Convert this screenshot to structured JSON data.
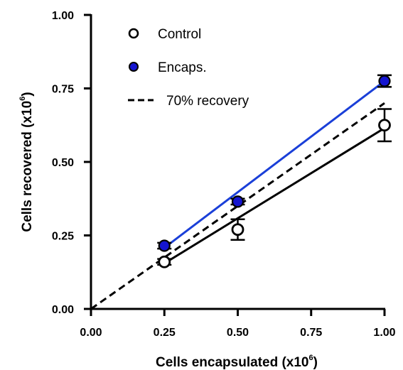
{
  "chart_data": {
    "type": "scatter",
    "xlabel": {
      "main": "Cells encapsulated (x10",
      "sup": "6",
      "close": ")"
    },
    "ylabel": {
      "main": "Cells recovered (x10",
      "sup": "6",
      "close": ")"
    },
    "xlim": [
      0,
      1
    ],
    "ylim": [
      0,
      1
    ],
    "x_ticks": [
      0,
      0.25,
      0.5,
      0.75,
      1
    ],
    "x_tick_labels": [
      "0.00",
      "0.25",
      "0.50",
      "0.75",
      "1.00"
    ],
    "y_ticks": [
      0,
      0.25,
      0.5,
      0.75,
      1
    ],
    "y_tick_labels": [
      "0.00",
      "0.25",
      "0.50",
      "0.75",
      "1.00"
    ],
    "grid": false,
    "legend_position": "top-left",
    "series": [
      {
        "name": "Control",
        "marker": "open-circle",
        "color": "#000000",
        "points": [
          {
            "x": 0.25,
            "y": 0.16,
            "err": 0.01
          },
          {
            "x": 0.5,
            "y": 0.27,
            "err": 0.035
          },
          {
            "x": 1.0,
            "y": 0.625,
            "err": 0.055
          }
        ],
        "fit": {
          "x": [
            0.25,
            1.0
          ],
          "y": [
            0.155,
            0.615
          ],
          "color": "#000000",
          "dash": false
        }
      },
      {
        "name": "Encaps.",
        "marker": "filled-circle",
        "color": "#1515d0",
        "points": [
          {
            "x": 0.25,
            "y": 0.215,
            "err": 0.01
          },
          {
            "x": 0.5,
            "y": 0.365,
            "err": 0.01
          },
          {
            "x": 1.0,
            "y": 0.775,
            "err": 0.02
          }
        ],
        "fit": {
          "x": [
            0.25,
            1.0
          ],
          "y": [
            0.208,
            0.775
          ],
          "color": "#1a3fd8",
          "dash": false
        }
      },
      {
        "name": "70% recovery",
        "marker": "none",
        "color": "#000000",
        "fit": {
          "x": [
            0,
            1.0
          ],
          "y": [
            0,
            0.7
          ],
          "color": "#000000",
          "dash": true
        }
      }
    ]
  }
}
